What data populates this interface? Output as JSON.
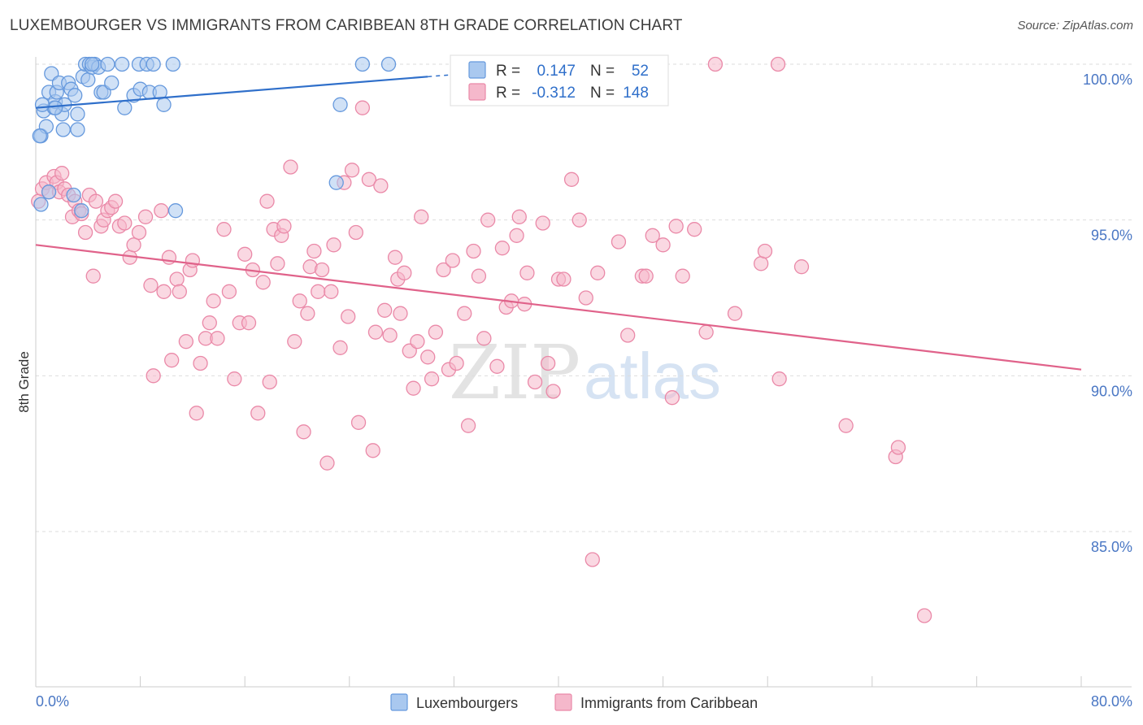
{
  "title": "LUXEMBOURGER VS IMMIGRANTS FROM CARIBBEAN 8TH GRADE CORRELATION CHART",
  "source": "Source: ZipAtlas.com",
  "watermark": {
    "zip": "ZIP",
    "atlas": "atlas"
  },
  "colors": {
    "blue_fill": "#a9c8ef",
    "blue_stroke": "#6699dd",
    "blue_line": "#2f6fca",
    "pink_fill": "#f5b8cb",
    "pink_stroke": "#ea89a8",
    "pink_line": "#e0628a",
    "tick_text": "#4a77c4",
    "grid": "#dddddd"
  },
  "legend_stats": [
    {
      "r_label": "R =",
      "r_value": "0.147",
      "n_label": "N =",
      "n_value": "52"
    },
    {
      "r_label": "R =",
      "r_value": "-0.312",
      "n_label": "N =",
      "n_value": "148"
    }
  ],
  "legend_bottom": [
    "Luxembourgers",
    "Immigrants from Caribbean"
  ],
  "chart_data": {
    "type": "scatter",
    "title": "LUXEMBOURGER VS IMMIGRANTS FROM CARIBBEAN 8TH GRADE CORRELATION CHART",
    "xlabel": "",
    "ylabel": "8th Grade",
    "xlim": [
      0,
      80
    ],
    "ylim": [
      80.3,
      100.9
    ],
    "x_tick_labels": [
      "0.0%",
      "80.0%"
    ],
    "y_ticks": [
      85,
      90,
      95,
      100
    ],
    "y_tick_labels": [
      "85.0%",
      "90.0%",
      "95.0%",
      "100.0%"
    ],
    "legend_position": "top-center",
    "series": [
      {
        "name": "Luxembourgers",
        "color": "#6699dd",
        "r": 0.147,
        "n": 52,
        "trend": {
          "x": [
            0,
            30
          ],
          "y": [
            98.6,
            99.6
          ]
        },
        "points": [
          [
            0.4,
            97.7
          ],
          [
            0.6,
            98.5
          ],
          [
            0.8,
            98.0
          ],
          [
            1.0,
            99.1
          ],
          [
            1.2,
            99.7
          ],
          [
            1.4,
            98.6
          ],
          [
            1.5,
            98.8
          ],
          [
            1.6,
            99.1
          ],
          [
            1.8,
            99.4
          ],
          [
            2.0,
            98.4
          ],
          [
            2.1,
            97.9
          ],
          [
            2.2,
            98.7
          ],
          [
            2.5,
            99.4
          ],
          [
            2.7,
            99.2
          ],
          [
            3.0,
            99.0
          ],
          [
            3.2,
            98.4
          ],
          [
            3.2,
            97.9
          ],
          [
            3.6,
            99.6
          ],
          [
            3.8,
            100.0
          ],
          [
            4.0,
            99.5
          ],
          [
            4.1,
            100.0
          ],
          [
            4.3,
            99.9
          ],
          [
            4.5,
            100.0
          ],
          [
            4.8,
            99.9
          ],
          [
            5.0,
            99.1
          ],
          [
            5.2,
            99.1
          ],
          [
            5.5,
            100.0
          ],
          [
            5.8,
            99.4
          ],
          [
            6.6,
            100.0
          ],
          [
            6.8,
            98.6
          ],
          [
            7.5,
            99.0
          ],
          [
            7.9,
            100.0
          ],
          [
            8.0,
            99.2
          ],
          [
            8.5,
            100.0
          ],
          [
            8.7,
            99.1
          ],
          [
            9.0,
            100.0
          ],
          [
            9.5,
            99.1
          ],
          [
            9.8,
            98.7
          ],
          [
            10.5,
            100.0
          ],
          [
            10.7,
            95.3
          ],
          [
            23.0,
            96.2
          ],
          [
            23.3,
            98.7
          ],
          [
            25.0,
            100.0
          ],
          [
            27.0,
            100.0
          ],
          [
            0.4,
            95.5
          ],
          [
            1.0,
            95.9
          ],
          [
            2.9,
            95.8
          ],
          [
            3.5,
            95.3
          ],
          [
            0.5,
            98.7
          ],
          [
            1.5,
            98.6
          ],
          [
            4.3,
            100.0
          ],
          [
            0.3,
            97.7
          ]
        ]
      },
      {
        "name": "Immigrants from Caribbean",
        "color": "#ea89a8",
        "r": -0.312,
        "n": 148,
        "trend": {
          "x": [
            0,
            80
          ],
          "y": [
            94.2,
            90.2
          ]
        },
        "points": [
          [
            0.2,
            95.6
          ],
          [
            0.5,
            96.0
          ],
          [
            0.8,
            96.2
          ],
          [
            1.0,
            95.9
          ],
          [
            1.4,
            96.4
          ],
          [
            1.6,
            96.2
          ],
          [
            1.8,
            95.9
          ],
          [
            2.0,
            96.5
          ],
          [
            2.2,
            96.0
          ],
          [
            2.5,
            95.8
          ],
          [
            2.8,
            95.1
          ],
          [
            3.0,
            95.6
          ],
          [
            3.3,
            95.3
          ],
          [
            3.5,
            95.2
          ],
          [
            3.8,
            94.6
          ],
          [
            4.1,
            95.8
          ],
          [
            4.4,
            93.2
          ],
          [
            4.6,
            95.6
          ],
          [
            5.0,
            94.8
          ],
          [
            5.2,
            95.0
          ],
          [
            5.5,
            95.3
          ],
          [
            5.8,
            95.4
          ],
          [
            6.1,
            95.6
          ],
          [
            6.4,
            94.8
          ],
          [
            6.8,
            94.9
          ],
          [
            7.2,
            93.8
          ],
          [
            7.5,
            94.2
          ],
          [
            7.9,
            94.6
          ],
          [
            8.4,
            95.1
          ],
          [
            8.8,
            92.9
          ],
          [
            9.0,
            90.0
          ],
          [
            9.6,
            95.3
          ],
          [
            9.8,
            92.7
          ],
          [
            10.2,
            93.8
          ],
          [
            10.4,
            90.5
          ],
          [
            10.8,
            93.1
          ],
          [
            11.0,
            92.7
          ],
          [
            11.5,
            91.1
          ],
          [
            11.8,
            93.4
          ],
          [
            12.0,
            93.7
          ],
          [
            12.3,
            88.8
          ],
          [
            12.6,
            90.4
          ],
          [
            13.0,
            91.2
          ],
          [
            13.3,
            91.7
          ],
          [
            13.6,
            92.4
          ],
          [
            13.9,
            91.2
          ],
          [
            14.4,
            94.7
          ],
          [
            14.8,
            92.7
          ],
          [
            15.2,
            89.9
          ],
          [
            15.6,
            91.7
          ],
          [
            16.0,
            93.9
          ],
          [
            16.3,
            91.7
          ],
          [
            16.6,
            93.4
          ],
          [
            17.0,
            88.8
          ],
          [
            17.4,
            93.0
          ],
          [
            17.7,
            95.6
          ],
          [
            17.9,
            89.8
          ],
          [
            18.2,
            94.7
          ],
          [
            18.5,
            93.6
          ],
          [
            18.8,
            94.5
          ],
          [
            19.0,
            94.8
          ],
          [
            19.5,
            96.7
          ],
          [
            19.8,
            91.1
          ],
          [
            20.2,
            92.4
          ],
          [
            20.5,
            88.2
          ],
          [
            20.8,
            92.0
          ],
          [
            21.0,
            93.5
          ],
          [
            21.3,
            94.0
          ],
          [
            21.6,
            92.7
          ],
          [
            21.9,
            93.4
          ],
          [
            22.3,
            87.2
          ],
          [
            22.6,
            92.7
          ],
          [
            22.8,
            94.2
          ],
          [
            23.3,
            90.9
          ],
          [
            23.6,
            96.2
          ],
          [
            23.9,
            91.9
          ],
          [
            24.2,
            96.6
          ],
          [
            24.5,
            94.6
          ],
          [
            24.7,
            88.5
          ],
          [
            25.0,
            98.6
          ],
          [
            25.5,
            96.3
          ],
          [
            25.8,
            87.6
          ],
          [
            26.0,
            91.4
          ],
          [
            26.4,
            96.1
          ],
          [
            26.7,
            92.1
          ],
          [
            27.1,
            91.3
          ],
          [
            27.5,
            93.8
          ],
          [
            27.7,
            93.1
          ],
          [
            27.9,
            92.0
          ],
          [
            28.2,
            93.3
          ],
          [
            28.6,
            90.8
          ],
          [
            28.9,
            89.6
          ],
          [
            29.2,
            91.1
          ],
          [
            29.5,
            95.1
          ],
          [
            30.0,
            90.6
          ],
          [
            30.3,
            89.9
          ],
          [
            30.6,
            91.4
          ],
          [
            31.2,
            93.4
          ],
          [
            31.6,
            90.2
          ],
          [
            31.9,
            93.7
          ],
          [
            32.2,
            90.4
          ],
          [
            32.8,
            92.0
          ],
          [
            33.1,
            88.4
          ],
          [
            33.5,
            94.0
          ],
          [
            33.9,
            93.2
          ],
          [
            34.3,
            91.2
          ],
          [
            34.6,
            95.0
          ],
          [
            35.3,
            90.3
          ],
          [
            35.7,
            94.1
          ],
          [
            36.0,
            92.2
          ],
          [
            36.4,
            92.4
          ],
          [
            36.8,
            94.5
          ],
          [
            37.0,
            95.1
          ],
          [
            37.4,
            92.3
          ],
          [
            37.6,
            93.3
          ],
          [
            38.2,
            89.8
          ],
          [
            38.8,
            94.9
          ],
          [
            39.2,
            90.4
          ],
          [
            39.6,
            89.5
          ],
          [
            40.0,
            93.1
          ],
          [
            40.4,
            93.1
          ],
          [
            41.0,
            96.3
          ],
          [
            41.6,
            95.0
          ],
          [
            42.1,
            92.5
          ],
          [
            42.6,
            84.1
          ],
          [
            43.0,
            93.3
          ],
          [
            44.6,
            94.3
          ],
          [
            45.3,
            91.3
          ],
          [
            46.4,
            93.2
          ],
          [
            46.7,
            93.2
          ],
          [
            47.2,
            94.5
          ],
          [
            48.0,
            94.2
          ],
          [
            48.7,
            89.3
          ],
          [
            49.0,
            94.8
          ],
          [
            49.5,
            93.2
          ],
          [
            50.4,
            94.7
          ],
          [
            51.3,
            91.4
          ],
          [
            52.0,
            100.0
          ],
          [
            53.5,
            92.0
          ],
          [
            55.5,
            93.6
          ],
          [
            55.8,
            94.0
          ],
          [
            56.8,
            100.0
          ],
          [
            56.9,
            89.9
          ],
          [
            58.6,
            93.5
          ],
          [
            62.0,
            88.4
          ],
          [
            65.8,
            87.4
          ],
          [
            66.0,
            87.7
          ],
          [
            68.0,
            82.3
          ]
        ]
      }
    ]
  }
}
